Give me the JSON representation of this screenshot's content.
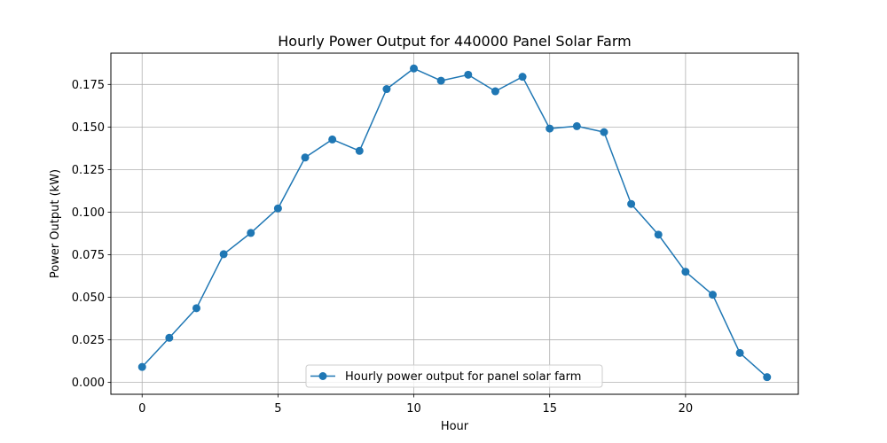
{
  "chart_data": {
    "type": "line",
    "title": "Hourly Power Output for 440000 Panel Solar Farm",
    "xlabel": "Hour",
    "ylabel": "Power Output (kW)",
    "x": [
      0,
      1,
      2,
      3,
      4,
      5,
      6,
      7,
      8,
      9,
      10,
      11,
      12,
      13,
      14,
      15,
      16,
      17,
      18,
      19,
      20,
      21,
      22,
      23
    ],
    "series": [
      {
        "name": "Hourly power output for panel solar farm",
        "color": "#1f77b4",
        "marker": "circle",
        "values": [
          0.0091,
          0.0262,
          0.0436,
          0.0753,
          0.0878,
          0.1022,
          0.1321,
          0.1427,
          0.136,
          0.1723,
          0.1844,
          0.1772,
          0.1807,
          0.171,
          0.1795,
          0.1491,
          0.1505,
          0.147,
          0.1048,
          0.0868,
          0.065,
          0.0515,
          0.0173,
          0.0031
        ]
      }
    ],
    "xlim": [
      -1.15,
      24.15
    ],
    "ylim": [
      -0.00696,
      0.19338
    ],
    "xticks": [
      0,
      5,
      10,
      15,
      20
    ],
    "xtick_labels": [
      "0",
      "5",
      "10",
      "15",
      "20"
    ],
    "yticks": [
      0.0,
      0.025,
      0.05,
      0.075,
      0.1,
      0.125,
      0.15,
      0.175
    ],
    "ytick_labels": [
      "0.000",
      "0.025",
      "0.050",
      "0.075",
      "0.100",
      "0.125",
      "0.150",
      "0.175"
    ],
    "grid": true,
    "legend_position": "bottom-center"
  }
}
